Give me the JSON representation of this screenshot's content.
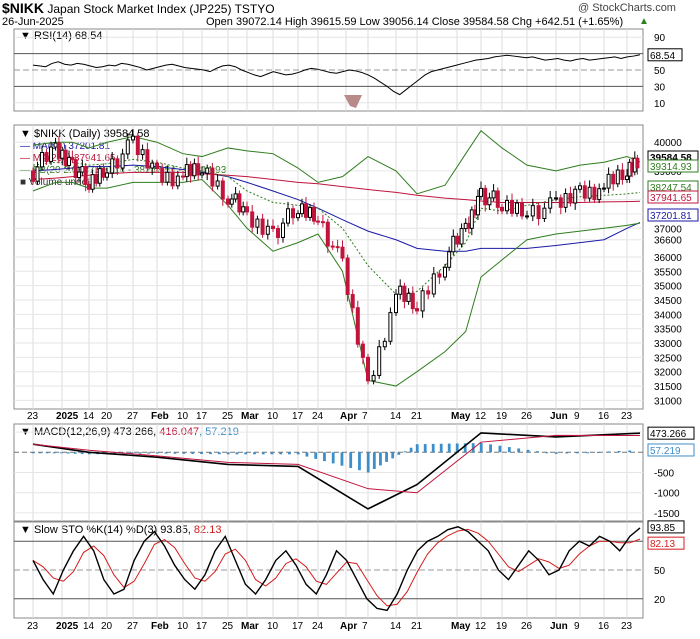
{
  "header": {
    "symbol": "$NIKK",
    "name": "Japan Stock Market Index (JP225)",
    "exchange": "TSTYO",
    "date": "26-Jun-2025",
    "ohlc_line": "Open 39072.14  High 39615.59  Low 39056.14  Close 39584.58  Chg +642.51 (+1.65%)",
    "up_arrow": "▲",
    "watermark": "@ StockCharts.com"
  },
  "panels": {
    "rsi": {
      "label": "RSI(14) 68.54",
      "last_value_badge": "68.54",
      "ticks": [
        "90",
        "70",
        "50",
        "30",
        "10"
      ]
    },
    "price": {
      "legend_title": "$NIKK (Daily) 39584.58",
      "legend": [
        {
          "label": "MA(50) 37201.81",
          "color": "#1a1aa6"
        },
        {
          "label": "MA(200) 37941.65",
          "color": "#c0143c"
        },
        {
          "label": "BB(20,2.0) 37180.14 - 38247.54 - 39314.93",
          "color": "#2e7d1e"
        },
        {
          "label": "Volume undef",
          "color": "#6b6b6b"
        }
      ],
      "ticks": [
        "40000",
        "39000",
        "38000",
        "37500",
        "37000",
        "36600",
        "36000",
        "35500",
        "35000",
        "34500",
        "34000",
        "33500",
        "33000",
        "32500",
        "32000",
        "31500",
        "31000"
      ],
      "badges": [
        {
          "label": "39584.58",
          "color": "#000000"
        },
        {
          "label": "39314.93",
          "color": "#2e7d1e"
        },
        {
          "label": "38247.54",
          "color": "#2e7d1e"
        },
        {
          "label": "37941.65",
          "color": "#c0143c"
        },
        {
          "label": "37201.81",
          "color": "#1a1aa6"
        }
      ]
    },
    "macd": {
      "label_prefix": "MACD(12,26,9) 473.266, ",
      "label_signal": "416.047",
      "label_hist": ", 57.219",
      "ticks": [
        "500",
        "0",
        "-500",
        "-1000",
        "-1500"
      ],
      "badges": [
        {
          "label": "473.266"
        },
        {
          "label": "57.219"
        }
      ]
    },
    "sto": {
      "label_prefix": "Slow STO %K(14) %D(3) 93.85, ",
      "label_d": "82.13",
      "ticks": [
        "80",
        "50",
        "20"
      ],
      "badges": [
        {
          "label": "93.85"
        },
        {
          "label": "82.13"
        }
      ]
    }
  },
  "x_axis_labels": [
    "23",
    "2025",
    "14",
    "20",
    "27",
    "Feb",
    "10",
    "17",
    "25",
    "Mar",
    "10",
    "17",
    "24",
    "Apr",
    "7",
    "14",
    "21",
    "May",
    "12",
    "19",
    "26",
    "Jun",
    "9",
    "16",
    "23"
  ],
  "colors": {
    "up": "#000000",
    "down": "#c0143c",
    "ma50": "#1a1aa6",
    "ma200": "#c0143c",
    "bb": "#2e7d1e",
    "bbmid": "#2e7d1e",
    "hist": "#3d8ec9",
    "sto_k": "#000000",
    "sto_d": "#d41c1c"
  },
  "chart_data": [
    {
      "type": "line",
      "title": "$NIKK (Daily) 39584.58",
      "x": [
        "2024-12-23",
        "2024-12-30",
        "2025-01-06",
        "2025-01-14",
        "2025-01-20",
        "2025-01-27",
        "2025-02-03",
        "2025-02-10",
        "2025-02-17",
        "2025-02-25",
        "2025-03-03",
        "2025-03-10",
        "2025-03-17",
        "2025-03-24",
        "2025-03-31",
        "2025-04-07",
        "2025-04-14",
        "2025-04-21",
        "2025-04-28",
        "2025-05-05",
        "2025-05-12",
        "2025-05-19",
        "2025-05-26",
        "2025-06-02",
        "2025-06-09",
        "2025-06-16",
        "2025-06-23",
        "2025-06-26"
      ],
      "series": [
        {
          "name": "$NIKK",
          "values": [
            39000,
            39700,
            39300,
            38450,
            39200,
            39850,
            38900,
            38800,
            39100,
            38200,
            37300,
            36900,
            37600,
            37500,
            35600,
            31500,
            34700,
            34300,
            36000,
            36900,
            38300,
            37700,
            37700,
            37700,
            38300,
            38400,
            39000,
            39584.58
          ]
        },
        {
          "name": "MA(50)",
          "values": [
            39000,
            39050,
            39100,
            39150,
            39150,
            39200,
            39150,
            39050,
            38950,
            38800,
            38600,
            38300,
            38000,
            37700,
            37300,
            36900,
            36600,
            36300,
            36200,
            36200,
            36300,
            36300,
            36300,
            36400,
            36500,
            36600,
            37000,
            37201.81
          ]
        },
        {
          "name": "MA(200)",
          "values": [
            38700,
            38750,
            38800,
            38850,
            38900,
            38950,
            38950,
            38950,
            38900,
            38850,
            38800,
            38700,
            38600,
            38550,
            38450,
            38350,
            38250,
            38150,
            38050,
            38000,
            37950,
            37900,
            37900,
            37900,
            37900,
            37920,
            37930,
            37941.65
          ]
        },
        {
          "name": "BB upper",
          "values": [
            39900,
            40000,
            40000,
            39800,
            40000,
            40200,
            40000,
            39600,
            39500,
            39800,
            39700,
            39600,
            39100,
            38600,
            38800,
            39500,
            39000,
            38200,
            38500,
            39600,
            40400,
            39800,
            39200,
            39000,
            39200,
            39300,
            39500,
            39314.93
          ]
        },
        {
          "name": "BB mid",
          "values": [
            39200,
            39300,
            39300,
            39200,
            39250,
            39400,
            39300,
            39100,
            39000,
            38800,
            38300,
            37900,
            37800,
            37700,
            37000,
            35700,
            34700,
            34800,
            35700,
            36500,
            37700,
            37600,
            37800,
            38000,
            38100,
            38150,
            38200,
            38247.54
          ]
        },
        {
          "name": "BB lower",
          "values": [
            38300,
            38600,
            38600,
            38400,
            38400,
            38600,
            38600,
            38600,
            38700,
            37800,
            37000,
            36200,
            36500,
            36800,
            35500,
            31700,
            31500,
            32000,
            32700,
            33400,
            35300,
            35900,
            36600,
            36800,
            36900,
            37000,
            37100,
            37180.14
          ]
        }
      ],
      "ylim": [
        30700,
        40600
      ]
    },
    {
      "type": "line",
      "title": "RSI(14) 68.54",
      "x": [
        "2024-12-23",
        "2025-01-14",
        "2025-02-03",
        "2025-02-25",
        "2025-03-17",
        "2025-04-07",
        "2025-04-21",
        "2025-05-12",
        "2025-06-02",
        "2025-06-26"
      ],
      "series": [
        {
          "name": "RSI(14)",
          "values": [
            56,
            55,
            50,
            42,
            50,
            22,
            52,
            68,
            62,
            68.54
          ]
        }
      ],
      "ylim": [
        0,
        100
      ]
    },
    {
      "type": "line",
      "title": "MACD(12,26,9) 473.266, 416.047, 57.219",
      "x": [
        "2024-12-23",
        "2025-01-14",
        "2025-02-03",
        "2025-02-25",
        "2025-03-17",
        "2025-04-07",
        "2025-04-21",
        "2025-05-12",
        "2025-06-02",
        "2025-06-26"
      ],
      "series": [
        {
          "name": "MACD",
          "values": [
            200,
            0,
            -120,
            -300,
            -350,
            -1400,
            -800,
            480,
            380,
            473.266
          ]
        },
        {
          "name": "Signal",
          "values": [
            200,
            50,
            -90,
            -250,
            -300,
            -900,
            -1000,
            250,
            420,
            416.047
          ]
        },
        {
          "name": "Histogram",
          "values": [
            0,
            -50,
            -30,
            -50,
            -50,
            -500,
            200,
            230,
            -40,
            57.219
          ]
        }
      ],
      "ylim": [
        -1700,
        700
      ]
    },
    {
      "type": "line",
      "title": "Slow STO %K(14) %D(3) 93.85, 82.13",
      "x": [
        "2024-12-23",
        "2025-01-14",
        "2025-02-03",
        "2025-02-25",
        "2025-03-17",
        "2025-04-07",
        "2025-04-21",
        "2025-05-12",
        "2025-06-02",
        "2025-06-26"
      ],
      "series": [
        {
          "name": "%K",
          "values": [
            60,
            30,
            80,
            40,
            30,
            10,
            60,
            95,
            40,
            93.85
          ]
        },
        {
          "name": "%D",
          "values": [
            58,
            35,
            75,
            45,
            35,
            12,
            55,
            92,
            50,
            82.13
          ]
        }
      ],
      "ylim": [
        0,
        100
      ]
    }
  ]
}
